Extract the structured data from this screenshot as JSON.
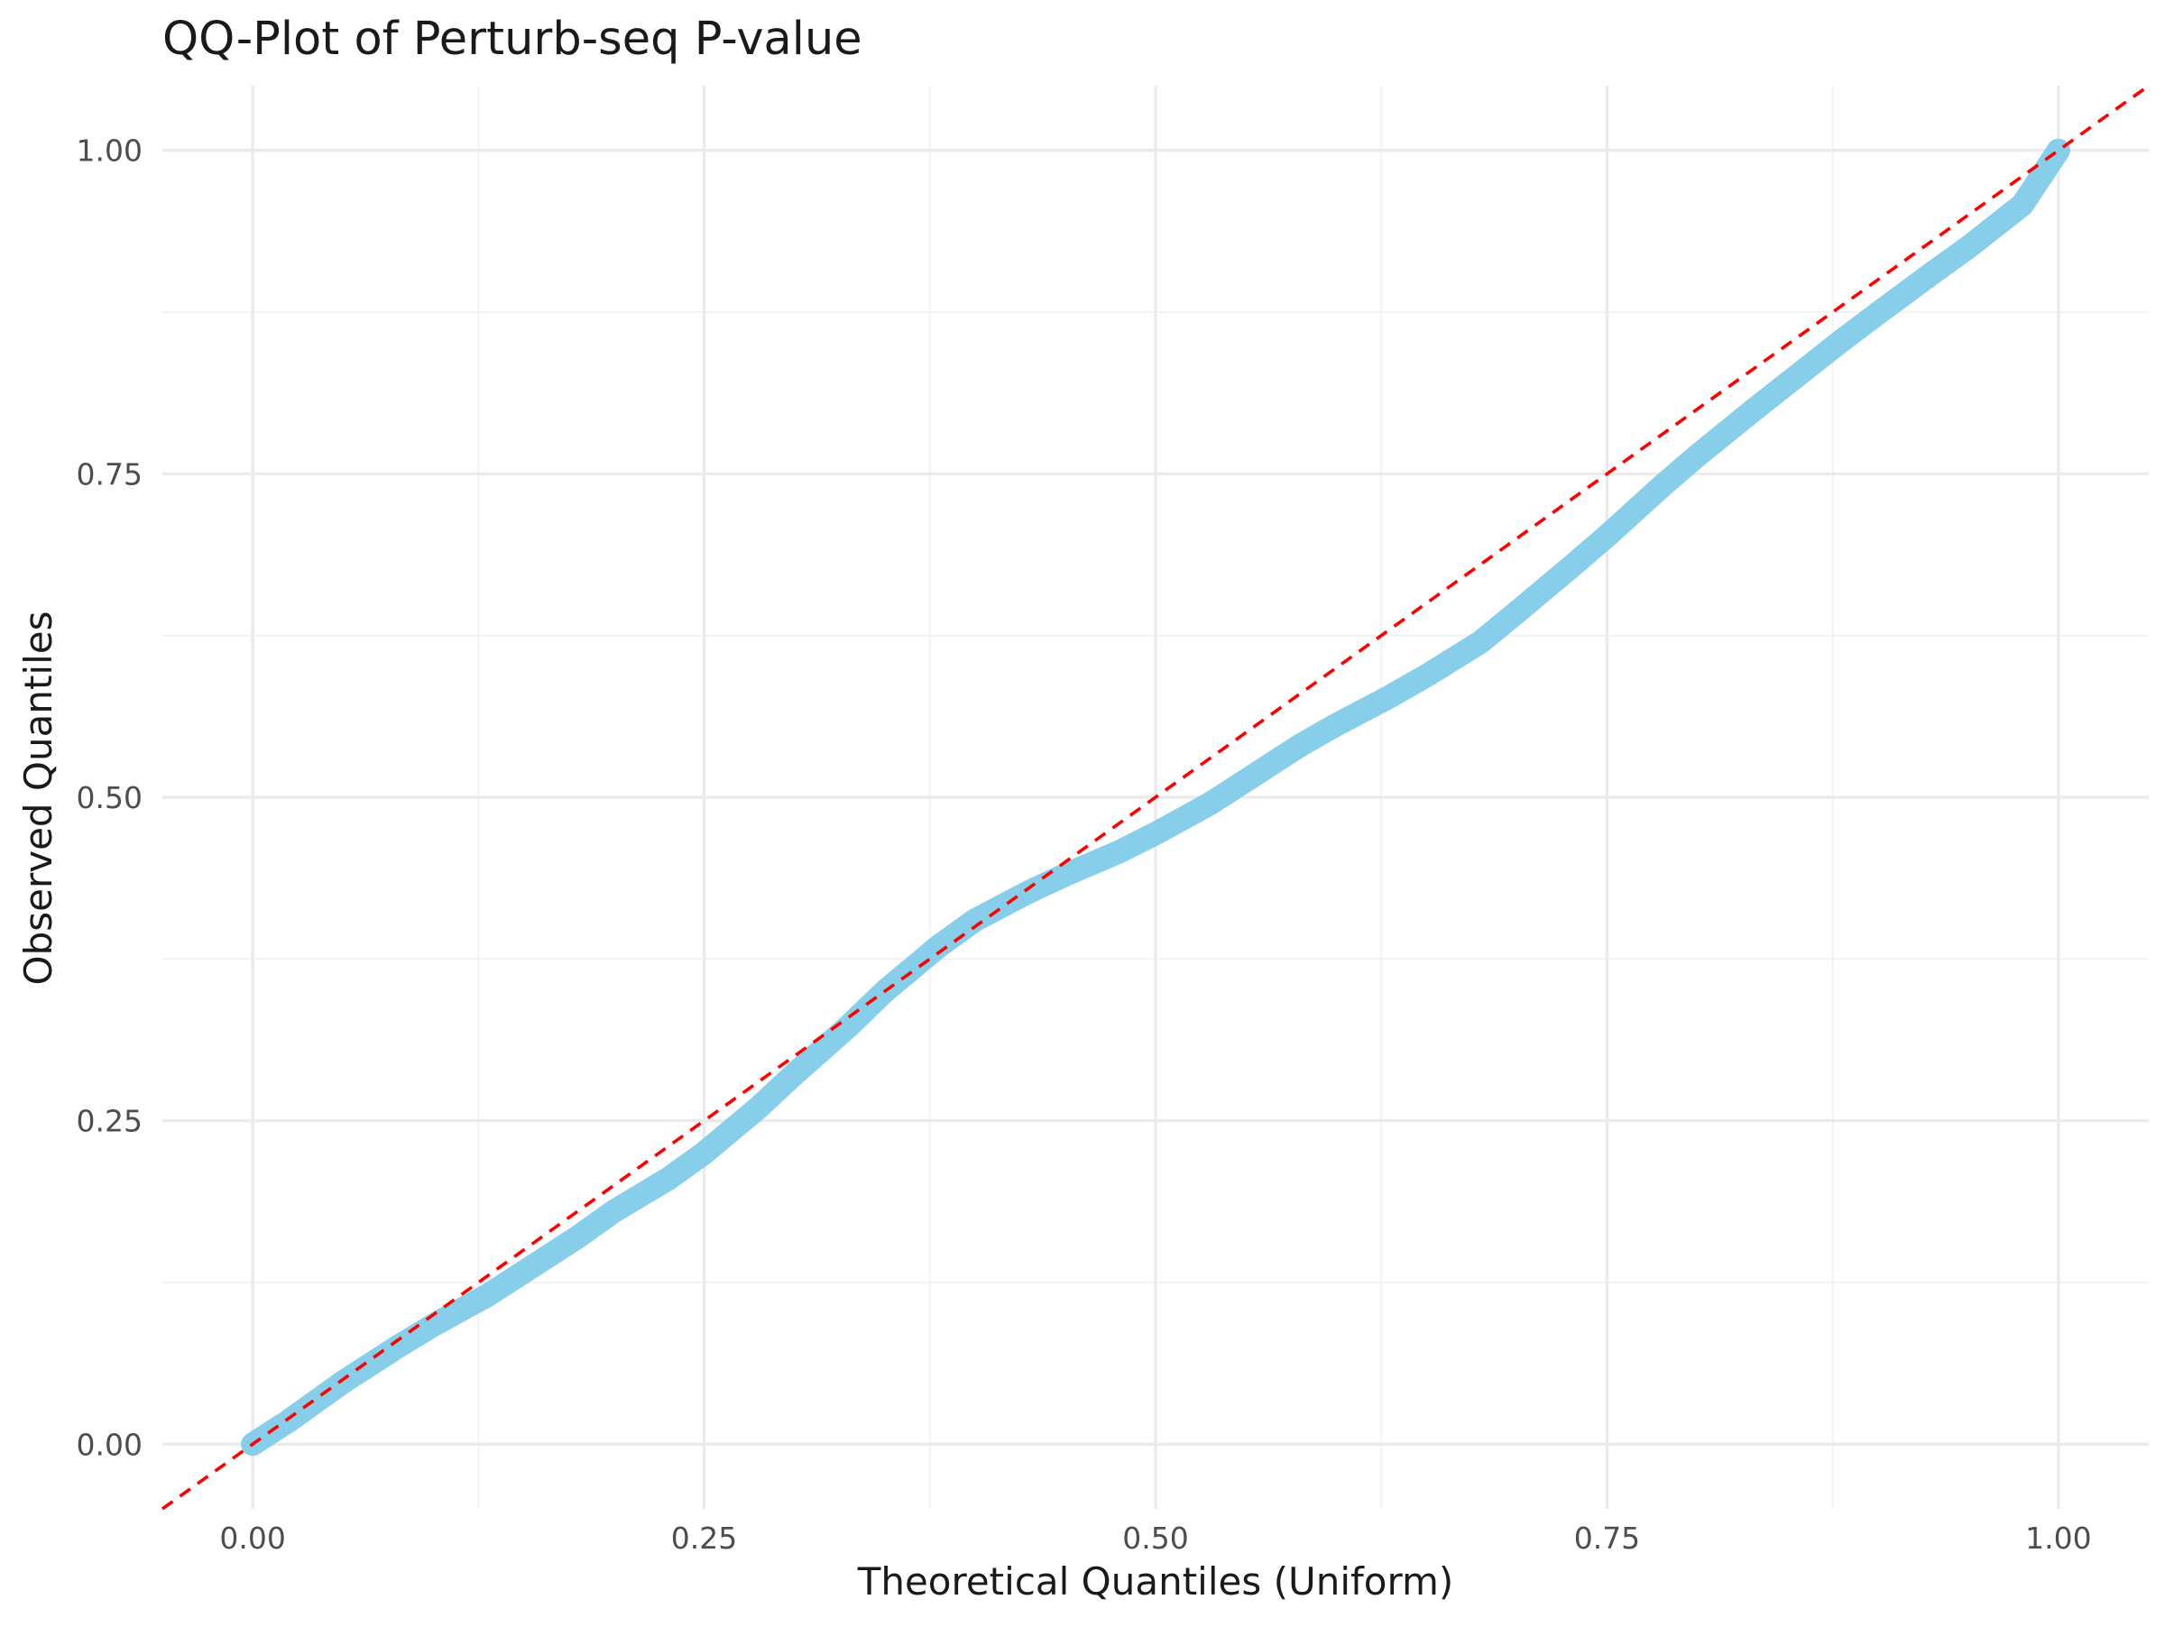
{
  "chart_data": {
    "type": "line",
    "title": "QQ-Plot of Perturb-seq P-value",
    "xlabel": "Theoretical Quantiles (Uniform)",
    "ylabel": "Observed Quantiles",
    "xlim": [
      -0.05,
      1.05
    ],
    "ylim": [
      -0.05,
      1.05
    ],
    "x_ticks": [
      0.0,
      0.25,
      0.5,
      0.75,
      1.0
    ],
    "x_tick_labels": [
      "0.00",
      "0.25",
      "0.50",
      "0.75",
      "1.00"
    ],
    "y_ticks": [
      0.0,
      0.25,
      0.5,
      0.75,
      1.0
    ],
    "y_tick_labels": [
      "0.00",
      "0.25",
      "0.50",
      "0.75",
      "1.00"
    ],
    "minor_ticks": [
      0.125,
      0.375,
      0.625,
      0.875
    ],
    "grid": true,
    "series": [
      {
        "role": "observed-quantiles",
        "color": "#87CEEB",
        "x": [
          0.0,
          0.02,
          0.05,
          0.08,
          0.1,
          0.13,
          0.15,
          0.18,
          0.2,
          0.23,
          0.25,
          0.28,
          0.3,
          0.33,
          0.35,
          0.38,
          0.4,
          0.43,
          0.45,
          0.48,
          0.5,
          0.53,
          0.55,
          0.58,
          0.6,
          0.63,
          0.65,
          0.68,
          0.7,
          0.73,
          0.75,
          0.78,
          0.8,
          0.83,
          0.85,
          0.88,
          0.9,
          0.93,
          0.95,
          0.98,
          1.0
        ],
        "y": [
          0.0,
          0.018,
          0.048,
          0.075,
          0.092,
          0.115,
          0.133,
          0.16,
          0.18,
          0.205,
          0.225,
          0.26,
          0.286,
          0.323,
          0.35,
          0.385,
          0.405,
          0.427,
          0.44,
          0.458,
          0.472,
          0.495,
          0.513,
          0.54,
          0.556,
          0.578,
          0.594,
          0.62,
          0.643,
          0.678,
          0.702,
          0.74,
          0.764,
          0.798,
          0.82,
          0.853,
          0.874,
          0.905,
          0.925,
          0.958,
          1.0
        ]
      },
      {
        "role": "reference-line",
        "color": "#FF0000",
        "style": "dashed",
        "slope": 1,
        "intercept": 0
      }
    ]
  }
}
